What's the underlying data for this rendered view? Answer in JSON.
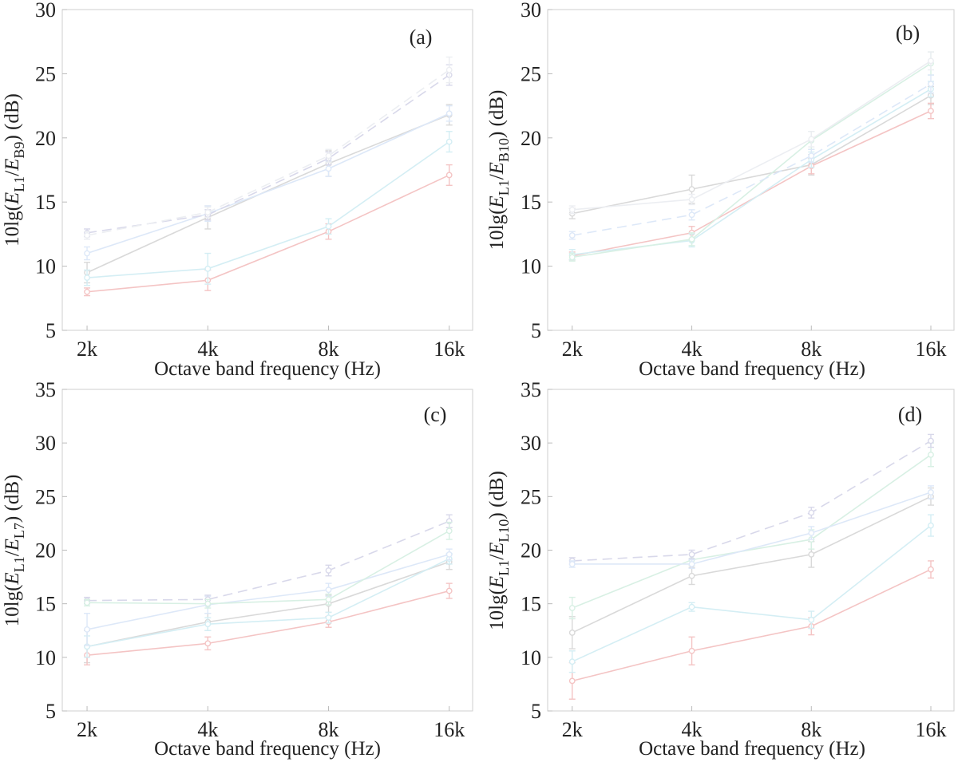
{
  "figure": {
    "description_label": "Four panels of octave band level differences"
  },
  "chart_data": [
    {
      "type": "line",
      "panel_label": "(a)",
      "categories": [
        "2k",
        "4k",
        "8k",
        "16k"
      ],
      "xlabel": "Octave band frequency (Hz)",
      "ylabel_parts": {
        "pre": "10lg(",
        "e1": "E",
        "sub1": "L1",
        "slash": "/",
        "e2": "E",
        "sub2": "B9",
        "post": ") (dB)"
      },
      "ylim": [
        5,
        30
      ],
      "yticks": [
        5,
        10,
        15,
        20,
        25,
        30
      ],
      "series": [
        {
          "name": "s1",
          "color": "#d9d9d9",
          "dash": "",
          "values": [
            9.5,
            13.8,
            18.0,
            21.8
          ],
          "err": [
            0.8,
            0.9,
            1.0,
            0.8
          ]
        },
        {
          "name": "s2",
          "color": "#f4c4c4",
          "dash": "",
          "values": [
            8.0,
            8.9,
            12.7,
            17.1
          ],
          "err": [
            0.3,
            0.8,
            0.6,
            0.8
          ]
        },
        {
          "name": "s3",
          "color": "#d4eef4",
          "dash": "",
          "values": [
            9.1,
            9.8,
            13.1,
            19.7
          ],
          "err": [
            0.6,
            1.2,
            0.6,
            0.8
          ]
        },
        {
          "name": "s4",
          "color": "#dde8f8",
          "dash": "",
          "values": [
            11.0,
            14.1,
            17.6,
            21.9
          ],
          "err": [
            0.5,
            0.6,
            0.6,
            0.6
          ]
        },
        {
          "name": "s5",
          "color": "#d8d8ea",
          "dash": "12,7",
          "values": [
            12.6,
            14.0,
            18.4,
            24.9
          ],
          "err": [
            0.3,
            0.4,
            0.5,
            0.8
          ]
        },
        {
          "name": "s6",
          "color": "#eceef2",
          "dash": "12,7",
          "values": [
            12.4,
            14.2,
            18.6,
            25.3
          ],
          "err": [
            0.3,
            0.4,
            0.5,
            1.0
          ]
        }
      ]
    },
    {
      "type": "line",
      "panel_label": "(b)",
      "categories": [
        "2k",
        "4k",
        "8k",
        "16k"
      ],
      "xlabel": "Octave band frequency (Hz)",
      "ylabel_parts": {
        "pre": "10lg(",
        "e1": "E",
        "sub1": "L1",
        "slash": "/",
        "e2": "E",
        "sub2": "B10",
        "post": ") (dB)"
      },
      "ylim": [
        5,
        30
      ],
      "yticks": [
        5,
        10,
        15,
        20,
        25,
        30
      ],
      "series": [
        {
          "name": "s1",
          "color": "#d9d9d9",
          "dash": "",
          "values": [
            14.1,
            16.0,
            17.9,
            23.3
          ],
          "err": [
            0.4,
            1.1,
            0.8,
            0.7
          ]
        },
        {
          "name": "s2",
          "color": "#f4c4c4",
          "dash": "",
          "values": [
            10.8,
            12.6,
            17.8,
            22.1
          ],
          "err": [
            0.3,
            0.5,
            0.6,
            0.6
          ]
        },
        {
          "name": "s3",
          "color": "#d4eef4",
          "dash": "",
          "values": [
            10.9,
            12.0,
            18.3,
            23.8
          ],
          "err": [
            0.4,
            0.5,
            0.6,
            0.6
          ]
        },
        {
          "name": "s4",
          "color": "#d8f0e4",
          "dash": "",
          "values": [
            10.7,
            12.1,
            19.8,
            25.8
          ],
          "err": [
            0.3,
            0.5,
            0.7,
            0.9
          ]
        },
        {
          "name": "s5",
          "color": "#dde8f8",
          "dash": "12,7",
          "values": [
            12.4,
            14.0,
            18.6,
            24.2
          ],
          "err": [
            0.3,
            0.4,
            0.5,
            0.7
          ]
        },
        {
          "name": "s6",
          "color": "#eceef2",
          "dash": "",
          "values": [
            14.4,
            15.2,
            19.9,
            26.0
          ],
          "err": [
            0.3,
            0.4,
            0.6,
            0.7
          ]
        }
      ]
    },
    {
      "type": "line",
      "panel_label": "(c)",
      "categories": [
        "2k",
        "4k",
        "8k",
        "16k"
      ],
      "xlabel": "Octave band frequency (Hz)",
      "ylabel_parts": {
        "pre": "10lg(",
        "e1": "E",
        "sub1": "L1",
        "slash": "/",
        "e2": "E",
        "sub2": "L7",
        "post": ") (dB)"
      },
      "ylim": [
        5,
        35
      ],
      "yticks": [
        5,
        10,
        15,
        20,
        25,
        30,
        35
      ],
      "series": [
        {
          "name": "s1",
          "color": "#d9d9d9",
          "dash": "",
          "values": [
            11.0,
            13.3,
            15.0,
            18.9
          ],
          "err": [
            1.5,
            0.8,
            0.8,
            0.7
          ]
        },
        {
          "name": "s2",
          "color": "#f4c4c4",
          "dash": "",
          "values": [
            10.2,
            11.3,
            13.3,
            16.2
          ],
          "err": [
            0.9,
            0.6,
            0.5,
            0.7
          ]
        },
        {
          "name": "s3",
          "color": "#d4eef4",
          "dash": "",
          "values": [
            11.0,
            13.1,
            13.7,
            19.2
          ],
          "err": [
            1.0,
            0.6,
            0.5,
            0.5
          ]
        },
        {
          "name": "s4",
          "color": "#dde8f8",
          "dash": "",
          "values": [
            12.6,
            14.9,
            16.3,
            19.6
          ],
          "err": [
            1.5,
            0.8,
            0.6,
            0.5
          ]
        },
        {
          "name": "s5",
          "color": "#d8d8ea",
          "dash": "12,7",
          "values": [
            15.3,
            15.4,
            18.1,
            22.7
          ],
          "err": [
            0.3,
            0.4,
            0.5,
            0.6
          ]
        },
        {
          "name": "s6",
          "color": "#d8f0e4",
          "dash": "",
          "values": [
            15.1,
            15.0,
            15.4,
            21.8
          ],
          "err": [
            0.3,
            0.4,
            0.5,
            0.8
          ]
        }
      ]
    },
    {
      "type": "line",
      "panel_label": "(d)",
      "categories": [
        "2k",
        "4k",
        "8k",
        "16k"
      ],
      "xlabel": "Octave band frequency (Hz)",
      "ylabel_parts": {
        "pre": "10lg(",
        "e1": "E",
        "sub1": "L1",
        "slash": "/",
        "e2": "E",
        "sub2": "L10",
        "post": ") (dB)"
      },
      "ylim": [
        5,
        35
      ],
      "yticks": [
        5,
        10,
        15,
        20,
        25,
        30,
        35
      ],
      "series": [
        {
          "name": "s1",
          "color": "#d9d9d9",
          "dash": "",
          "values": [
            12.3,
            17.6,
            19.6,
            25.0
          ],
          "err": [
            1.5,
            0.8,
            1.2,
            0.8
          ]
        },
        {
          "name": "s2",
          "color": "#f4c4c4",
          "dash": "",
          "values": [
            7.8,
            10.6,
            12.9,
            18.2
          ],
          "err": [
            1.7,
            1.3,
            0.8,
            0.8
          ]
        },
        {
          "name": "s3",
          "color": "#d4eef4",
          "dash": "",
          "values": [
            9.6,
            14.7,
            13.5,
            22.3
          ],
          "err": [
            1.0,
            0.4,
            0.8,
            1.0
          ]
        },
        {
          "name": "s4",
          "color": "#d8f0e4",
          "dash": "",
          "values": [
            14.6,
            19.1,
            21.0,
            28.9
          ],
          "err": [
            1.0,
            0.5,
            0.9,
            1.1
          ]
        },
        {
          "name": "s5",
          "color": "#d8d8ea",
          "dash": "12,7",
          "values": [
            19.0,
            19.6,
            23.5,
            30.2
          ],
          "err": [
            0.3,
            0.4,
            0.5,
            0.6
          ]
        },
        {
          "name": "s6",
          "color": "#dde8f8",
          "dash": "",
          "values": [
            18.7,
            18.7,
            21.6,
            25.4
          ],
          "err": [
            0.3,
            0.4,
            0.6,
            0.6
          ]
        }
      ]
    }
  ]
}
